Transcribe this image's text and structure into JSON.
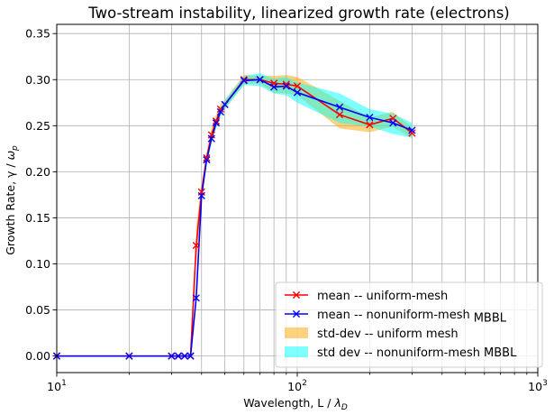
{
  "chart_data": {
    "type": "line",
    "title": "Two-stream instability, linearized growth rate (electrons)",
    "xlabel_text": "Wavelength, L / ",
    "xlabel_sym": "λ",
    "xlabel_sub": "D",
    "ylabel_text": "Growth Rate, γ / ",
    "ylabel_sym": "ω",
    "ylabel_sub": "p",
    "xscale": "log",
    "xlim": [
      10,
      1000
    ],
    "ylim": [
      -0.018,
      0.36
    ],
    "x_tick_labels": [
      {
        "value": 10,
        "base": "10",
        "exp": "1"
      },
      {
        "value": 100,
        "base": "10",
        "exp": "2"
      },
      {
        "value": 1000,
        "base": "10",
        "exp": "3"
      }
    ],
    "y_ticks": [
      0.0,
      0.05,
      0.1,
      0.15,
      0.2,
      0.25,
      0.3,
      0.35
    ],
    "y_tick_labels": [
      "0.00",
      "0.05",
      "0.10",
      "0.15",
      "0.20",
      "0.25",
      "0.30",
      "0.35"
    ],
    "grid": true,
    "legend_position": "lower-right",
    "series": [
      {
        "name": "mean -- uniform-mesh",
        "color": "#ff0000",
        "marker": "x",
        "x": [
          10,
          20,
          30,
          32,
          34,
          36,
          38,
          40,
          42,
          44,
          46,
          48,
          50,
          60,
          70,
          80,
          90,
          100,
          150,
          200,
          250,
          300
        ],
        "y": [
          0.0,
          0.0,
          0.0,
          0.0,
          0.0,
          0.0,
          0.12,
          0.178,
          0.215,
          0.24,
          0.255,
          0.268,
          0.273,
          0.3,
          0.3,
          0.296,
          0.295,
          0.293,
          0.262,
          0.251,
          0.258,
          0.242
        ]
      },
      {
        "name": "mean -- nonuniform-mesh",
        "suffix": "MBBL",
        "color": "#0000ff",
        "marker": "x",
        "x": [
          10,
          20,
          30,
          32,
          34,
          36,
          38,
          40,
          42,
          44,
          46,
          48,
          50,
          60,
          70,
          80,
          90,
          100,
          150,
          200,
          250,
          300
        ],
        "y": [
          0.0,
          0.0,
          0.0,
          0.0,
          0.0,
          0.0,
          0.063,
          0.174,
          0.213,
          0.236,
          0.253,
          0.265,
          0.273,
          0.299,
          0.3,
          0.292,
          0.293,
          0.286,
          0.27,
          0.259,
          0.253,
          0.245
        ]
      }
    ],
    "bands": [
      {
        "name": "std-dev -- uniform mesh",
        "color": "#ffa500",
        "opacity": 0.5,
        "x": [
          38,
          40,
          42,
          44,
          46,
          48,
          50,
          60,
          70,
          80,
          90,
          100,
          150,
          200,
          250,
          300
        ],
        "lower": [
          0.1,
          0.168,
          0.208,
          0.232,
          0.248,
          0.262,
          0.268,
          0.295,
          0.296,
          0.286,
          0.285,
          0.283,
          0.247,
          0.243,
          0.249,
          0.236
        ],
        "upper": [
          0.14,
          0.188,
          0.222,
          0.248,
          0.262,
          0.274,
          0.278,
          0.305,
          0.304,
          0.304,
          0.305,
          0.303,
          0.277,
          0.259,
          0.265,
          0.248
        ]
      },
      {
        "name": "std dev -- nonuniform-mesh",
        "suffix": "MBBL",
        "color": "#00ffff",
        "opacity": 0.5,
        "x": [
          38,
          40,
          42,
          44,
          46,
          48,
          50,
          60,
          70,
          80,
          90,
          100,
          150,
          200,
          250,
          300
        ],
        "lower": [
          0.055,
          0.168,
          0.208,
          0.231,
          0.248,
          0.26,
          0.268,
          0.294,
          0.293,
          0.285,
          0.283,
          0.275,
          0.253,
          0.249,
          0.241,
          0.237
        ],
        "upper": [
          0.071,
          0.18,
          0.218,
          0.241,
          0.258,
          0.27,
          0.278,
          0.304,
          0.307,
          0.301,
          0.303,
          0.297,
          0.285,
          0.268,
          0.263,
          0.253
        ]
      }
    ]
  }
}
